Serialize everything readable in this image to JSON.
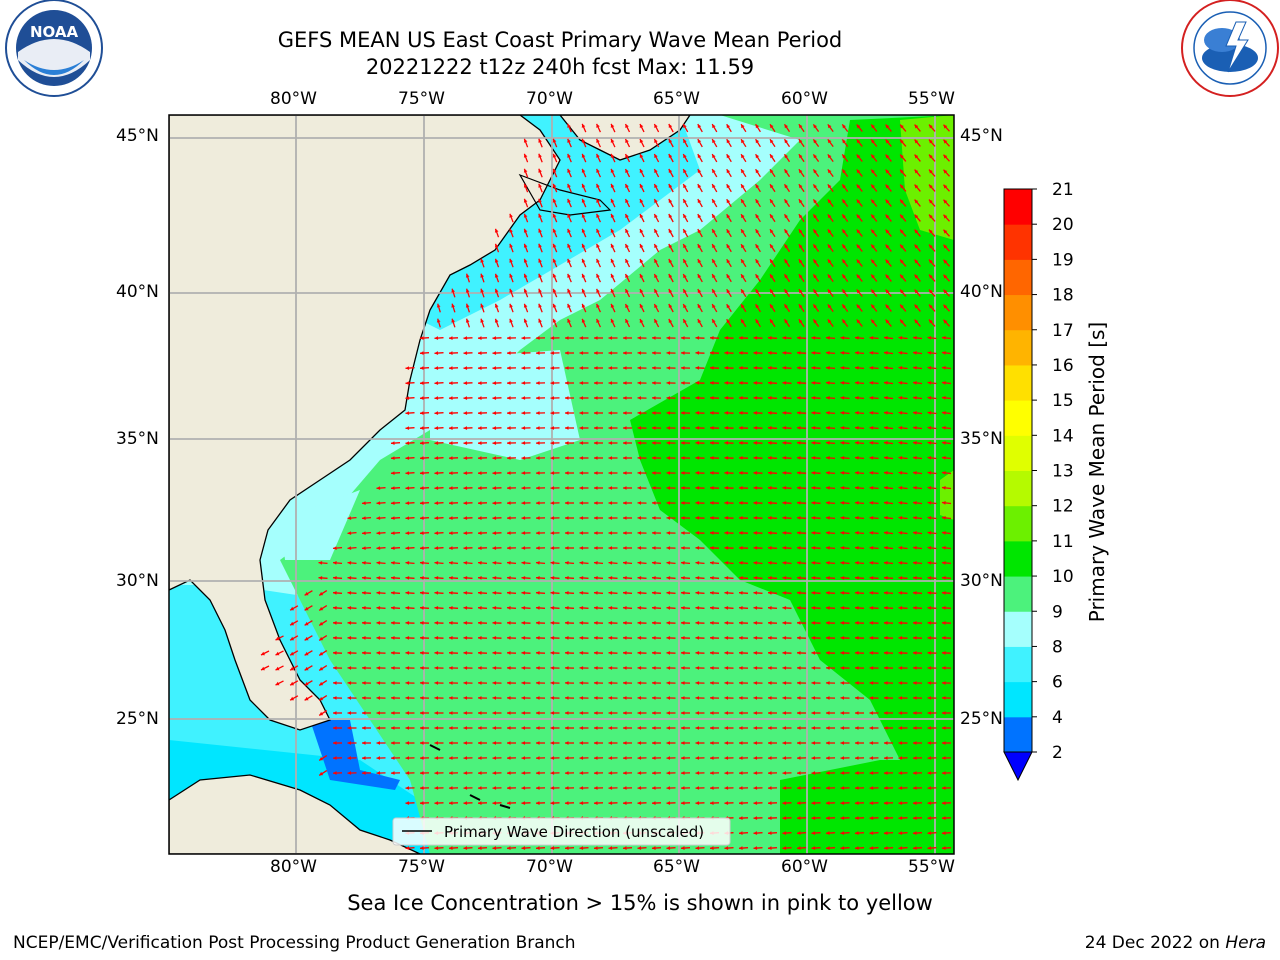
{
  "header": {
    "title_line1": "GEFS MEAN US East Coast Primary Wave Mean Period",
    "title_line2": "20221222 t12z 240h fcst   Max: 11.59"
  },
  "logos": {
    "noaa_text": "NOAA",
    "noaa_ring_text": "NATIONAL OCEANIC AND ATMOSPHERIC ADMINISTRATION · U.S. DEPARTMENT OF COMMERCE",
    "nws_ring_text": "NATIONAL WEATHER SERVICE"
  },
  "map": {
    "lon_ticks": [
      "80°W",
      "75°W",
      "70°W",
      "65°W",
      "60°W",
      "55°W"
    ],
    "lat_ticks": [
      "45°N",
      "40°N",
      "35°N",
      "30°N",
      "25°N"
    ],
    "legend_label": "Primary Wave Direction (unscaled)",
    "colors": {
      "land": "#efecdc",
      "arrow": "#ff0000",
      "grid": "#b0b0b0"
    }
  },
  "colorbar": {
    "label": "Primary Wave Mean Period [s]",
    "ticks": [
      "2",
      "4",
      "6",
      "8",
      "9",
      "10",
      "11",
      "12",
      "13",
      "14",
      "15",
      "16",
      "17",
      "18",
      "19",
      "20",
      "21"
    ],
    "colors": [
      "#0073ff",
      "#00e6ff",
      "#40f2ff",
      "#a5fffd",
      "#4cf27c",
      "#00e600",
      "#6cf000",
      "#b5fa00",
      "#e0ff00",
      "#ffff00",
      "#ffe000",
      "#ffb400",
      "#ff8f00",
      "#ff6600",
      "#ff3300",
      "#ff0000"
    ],
    "under_color": "#0000ff"
  },
  "footer": {
    "subtitle": "Sea Ice Concentration > 15% is shown in pink to yellow",
    "left": "NCEP/EMC/Verification Post Processing Product Generation Branch",
    "date": "24 Dec 2022 on ",
    "machine": "Hera"
  }
}
